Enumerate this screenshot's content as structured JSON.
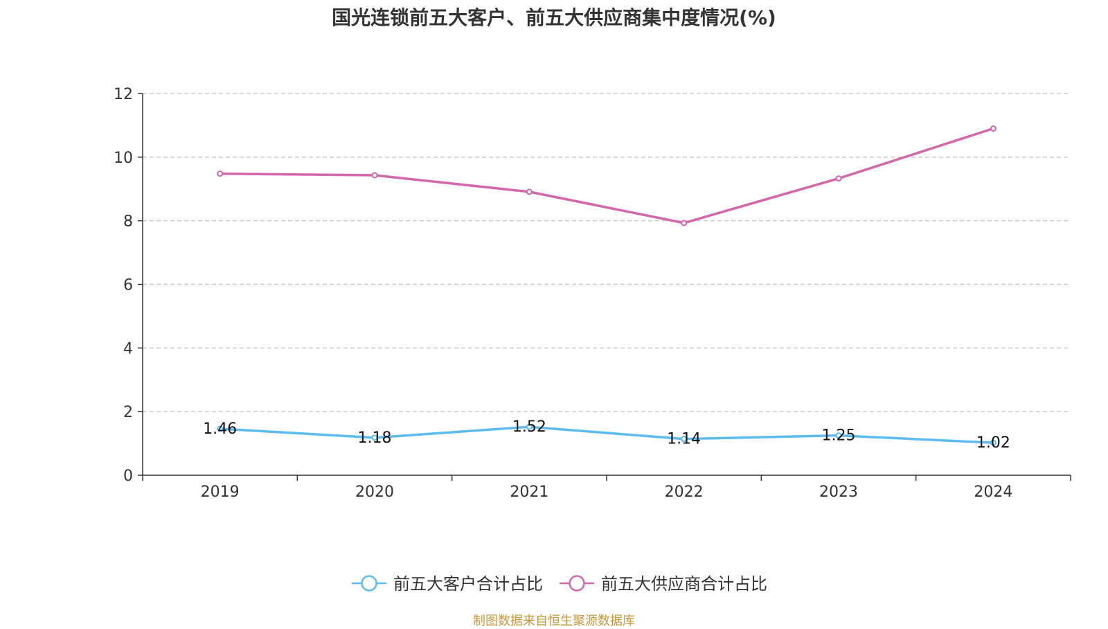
{
  "chart_data": {
    "type": "line",
    "title": "国光连锁前五大客户、前五大供应商集中度情况(%)",
    "categories": [
      "2019",
      "2020",
      "2021",
      "2022",
      "2023",
      "2024"
    ],
    "ylim": [
      0,
      12
    ],
    "yticks": [
      0,
      2,
      4,
      6,
      8,
      10,
      12
    ],
    "grid": true,
    "legend_position": "bottom",
    "series": [
      {
        "name": "前五大客户合计占比",
        "color": "#5bbcef",
        "values": [
          1.46,
          1.18,
          1.52,
          1.14,
          1.25,
          1.02
        ],
        "show_labels": true
      },
      {
        "name": "前五大供应商合计占比",
        "color": "#d466ab",
        "values": [
          9.48,
          9.43,
          8.91,
          7.93,
          9.33,
          10.9
        ],
        "show_labels": false
      }
    ]
  },
  "source": "制图数据来自恒生聚源数据库"
}
